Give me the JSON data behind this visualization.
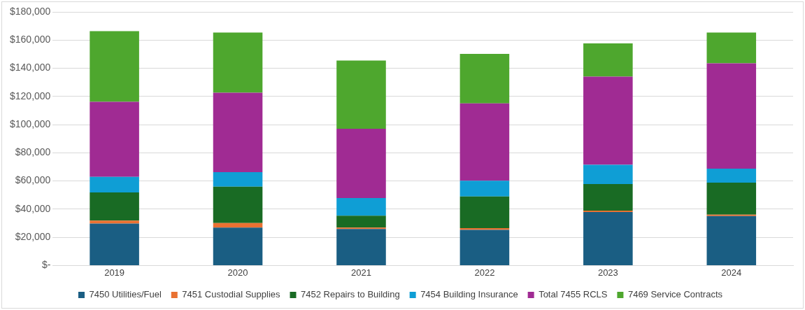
{
  "chart_data": {
    "type": "bar",
    "stacked": true,
    "categories": [
      "2019",
      "2020",
      "2021",
      "2022",
      "2023",
      "2024"
    ],
    "series": [
      {
        "name": "7450 Utilities/Fuel",
        "color": "#1a5e83",
        "values": [
          29700,
          26900,
          25900,
          25300,
          37900,
          35100
        ]
      },
      {
        "name": "7451 Custodial Supplies",
        "color": "#e97132",
        "values": [
          2200,
          3200,
          1000,
          1200,
          1000,
          1000
        ]
      },
      {
        "name": "7452 Repairs to Building",
        "color": "#196b24",
        "values": [
          20000,
          25800,
          8400,
          22500,
          18900,
          22700
        ]
      },
      {
        "name": "7454 Building Insurance",
        "color": "#0f9ed5",
        "values": [
          11000,
          10400,
          12600,
          11200,
          13700,
          9900
        ]
      },
      {
        "name": "Total 7455 RCLS",
        "color": "#a02b93",
        "values": [
          53300,
          56300,
          49100,
          54900,
          62600,
          74800
        ]
      },
      {
        "name": "7469 Service Contracts",
        "color": "#4ea72e",
        "values": [
          50100,
          42700,
          48500,
          35100,
          23600,
          21900
        ]
      }
    ],
    "ylim": [
      0,
      180000
    ],
    "yticks": [
      {
        "value": 0,
        "label": "$-"
      },
      {
        "value": 20000,
        "label": "$20,000"
      },
      {
        "value": 40000,
        "label": "$40,000"
      },
      {
        "value": 60000,
        "label": "$60,000"
      },
      {
        "value": 80000,
        "label": "$80,000"
      },
      {
        "value": 100000,
        "label": "$100,000"
      },
      {
        "value": 120000,
        "label": "$120,000"
      },
      {
        "value": 140000,
        "label": "$140,000"
      },
      {
        "value": 160000,
        "label": "$160,000"
      },
      {
        "value": 180000,
        "label": "$180,000"
      }
    ],
    "grid": "y",
    "legend": "bottom"
  }
}
